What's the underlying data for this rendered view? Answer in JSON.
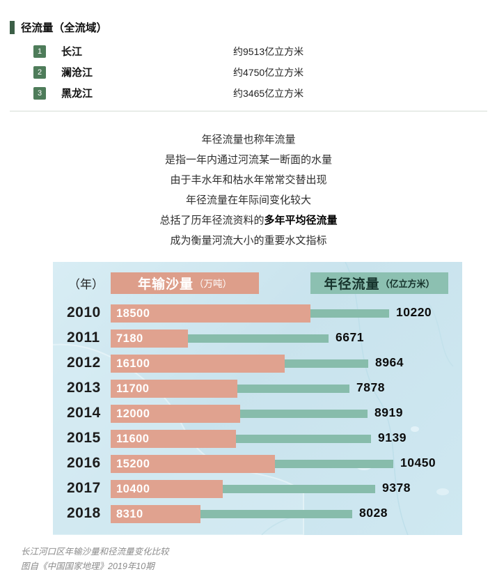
{
  "ranking": {
    "title": "径流量（全流域）",
    "items": [
      {
        "rank": "1",
        "name": "长江",
        "value": "约9513亿立方米"
      },
      {
        "rank": "2",
        "name": "澜沧江",
        "value": "约4750亿立方米"
      },
      {
        "rank": "3",
        "name": "黑龙江",
        "value": "约3465亿立方米"
      }
    ]
  },
  "description": {
    "lines": [
      {
        "pre": "年径流量也称年流量",
        "bold": "",
        "post": ""
      },
      {
        "pre": "是指一年内通过河流某一断面的水量",
        "bold": "",
        "post": ""
      },
      {
        "pre": "由于丰水年和枯水年常常交替出现",
        "bold": "",
        "post": ""
      },
      {
        "pre": "年径流量在年际间变化较大",
        "bold": "",
        "post": ""
      },
      {
        "pre": "总括了历年径流资料的",
        "bold": "多年平均径流量",
        "post": ""
      },
      {
        "pre": "成为衡量河流大小的重要水文指标",
        "bold": "",
        "post": ""
      }
    ]
  },
  "chart": {
    "year_header": "（年）",
    "sediment_label": "年输沙量",
    "sediment_unit": "（万吨）",
    "runoff_label": "年径流量",
    "runoff_unit": "（亿立方米）"
  },
  "chart_data": {
    "type": "bar",
    "orientation": "horizontal",
    "title": "长江河口区年输沙量和径流量变化比较",
    "categories": [
      "2010",
      "2011",
      "2012",
      "2013",
      "2014",
      "2015",
      "2016",
      "2017",
      "2018"
    ],
    "series": [
      {
        "name": "年输沙量（万吨）",
        "color": "#e0a28f",
        "values": [
          18500,
          7180,
          16100,
          11700,
          12000,
          11600,
          15200,
          10400,
          8310
        ]
      },
      {
        "name": "年径流量（亿立方米）",
        "color": "#87bcab",
        "values": [
          10220,
          6671,
          8964,
          7878,
          8919,
          9139,
          10450,
          9378,
          8028
        ]
      }
    ],
    "value_labels": true,
    "legend_position": "top",
    "background": "light-blue map of China east coast"
  },
  "caption": {
    "line1": "长江河口区年输沙量和径流量变化比较",
    "line2": "图自《中国国家地理》2019年10期"
  },
  "colors": {
    "accent_green": "#3c5f47",
    "badge_green": "#4e7c5a",
    "sediment": "#e0a28f",
    "runoff": "#87bcab",
    "chart_bg": "#cde7f0"
  }
}
